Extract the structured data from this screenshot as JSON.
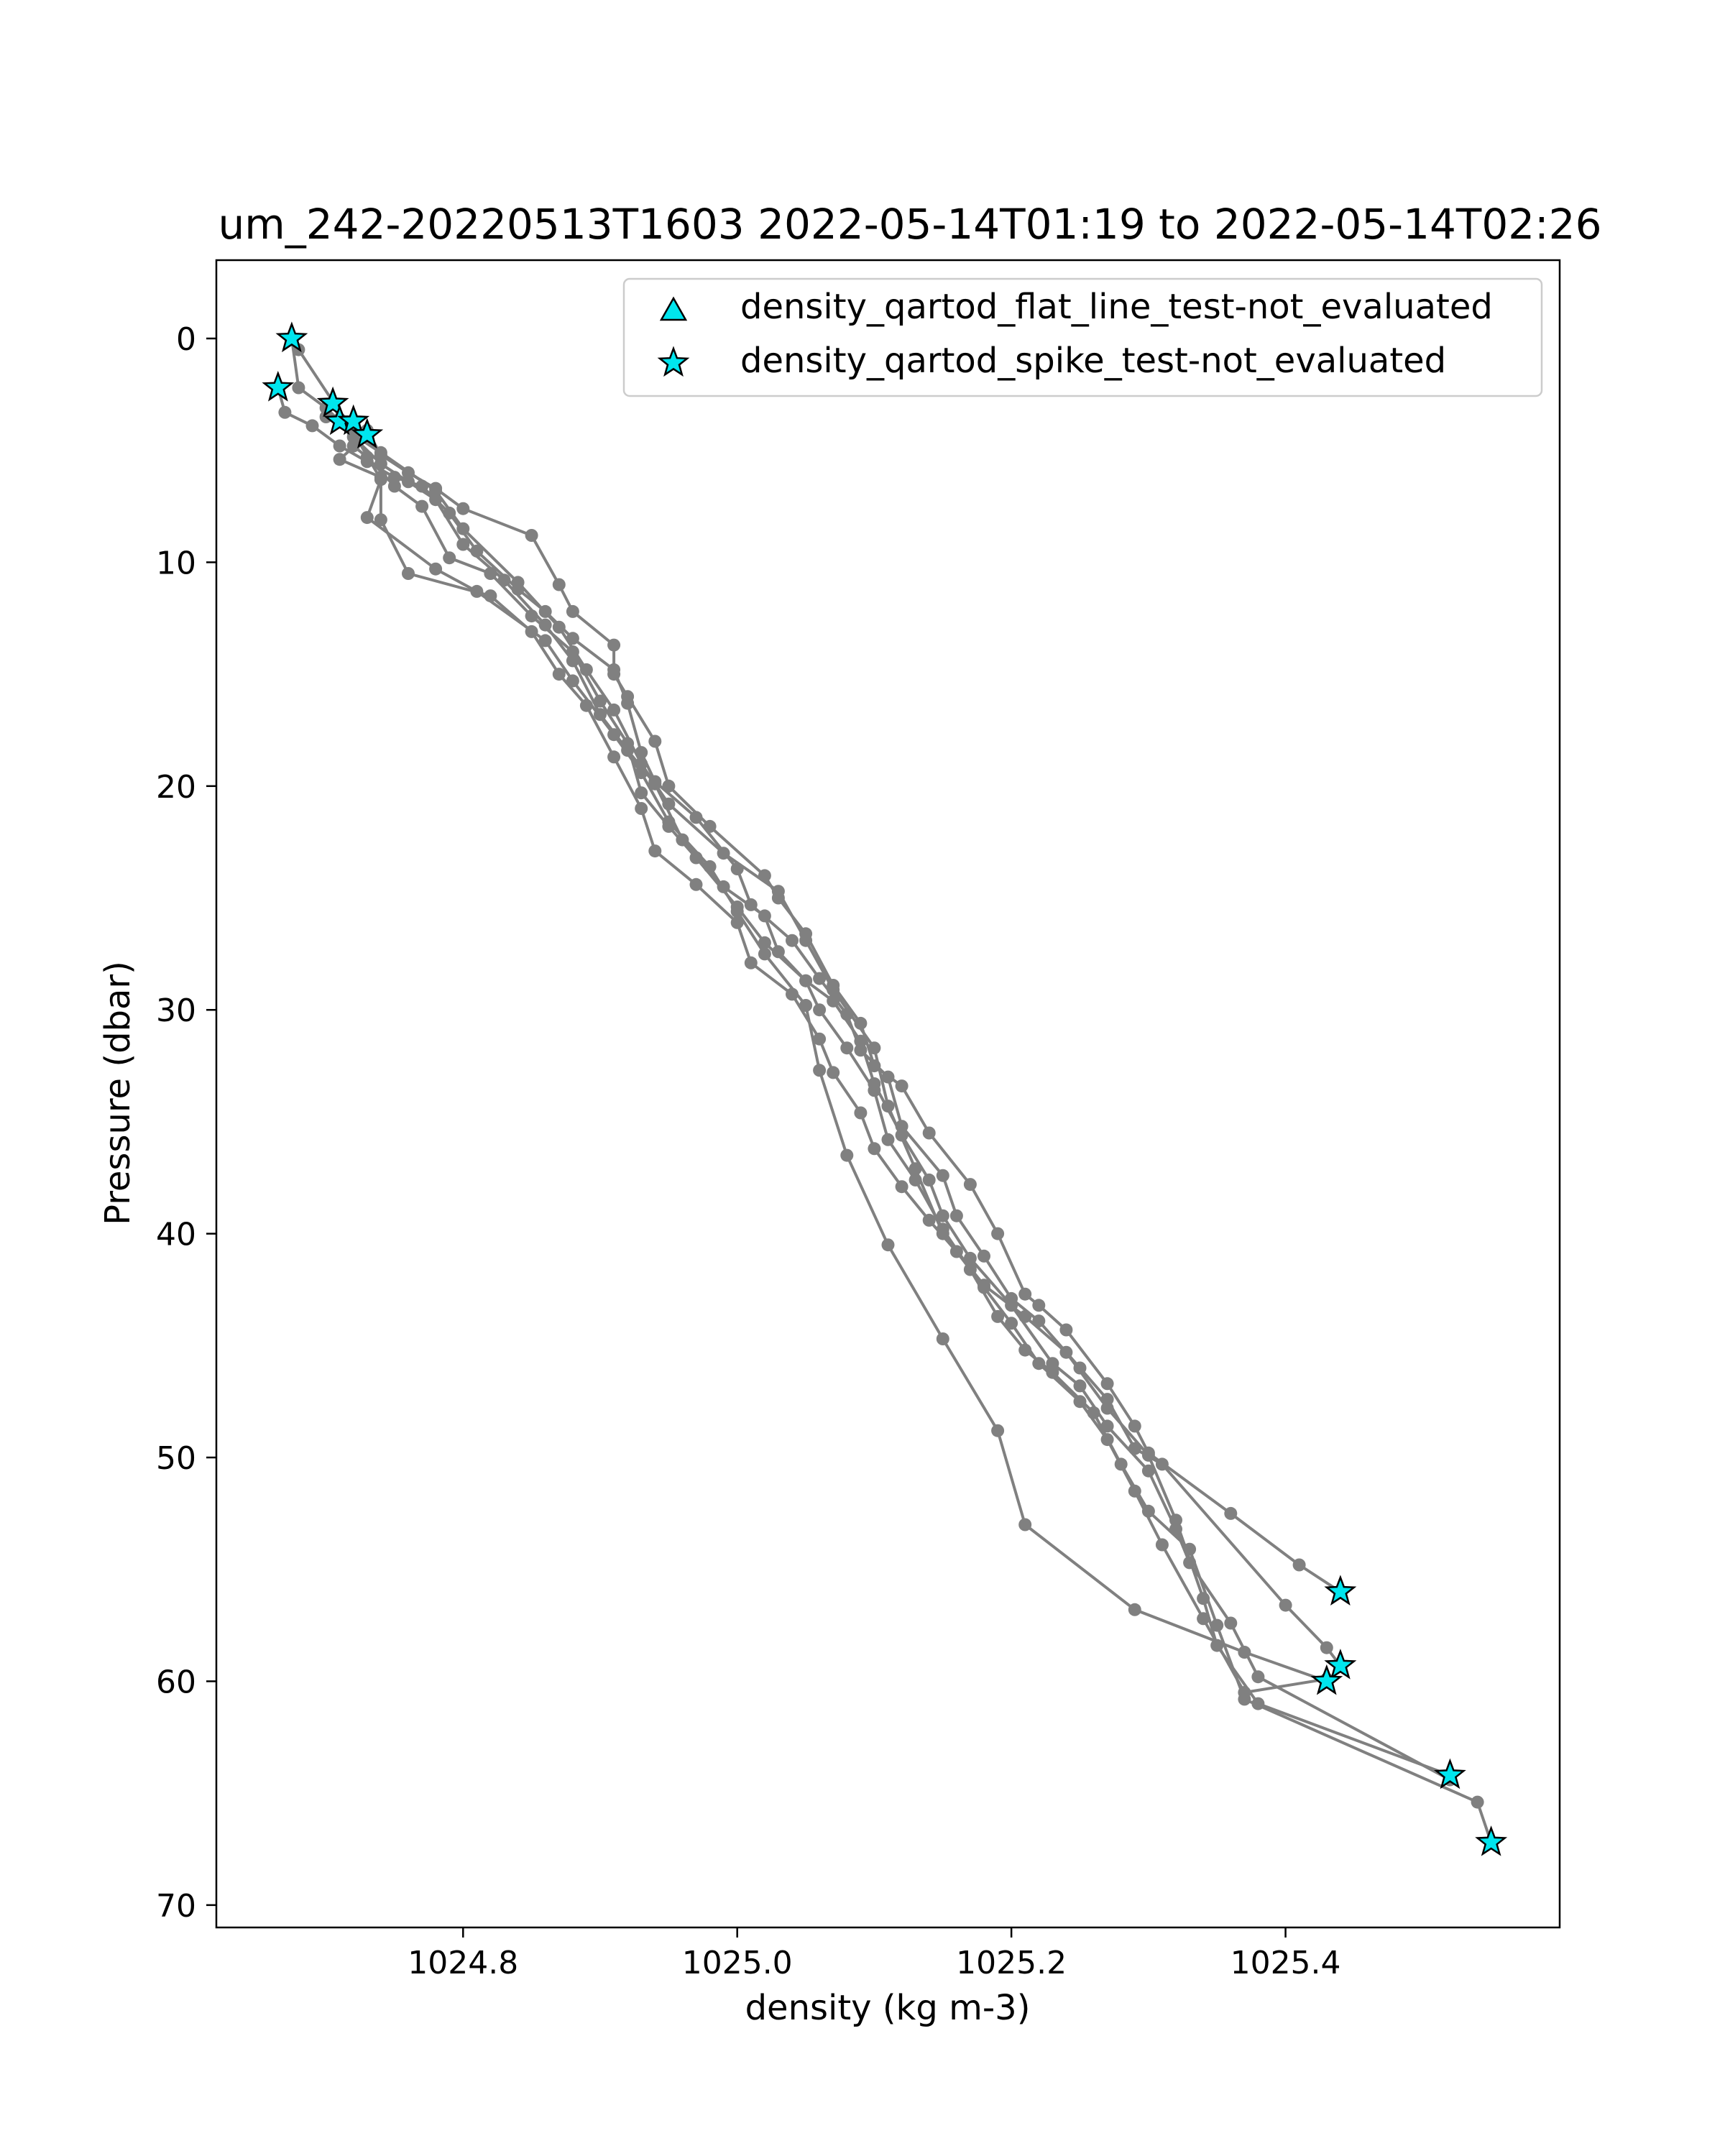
{
  "chart_data": {
    "type": "scatter",
    "title": "um_242-20220513T1603 2022-05-14T01:19 to 2022-05-14T02:26",
    "xlabel": "density (kg m-3)",
    "ylabel": "Pressure (dbar)",
    "xlim": [
      1024.62,
      1025.6
    ],
    "ylim": [
      71,
      -3.5
    ],
    "y_inverted": true,
    "grid": false,
    "legend_position": "top-right",
    "xticks": [
      1024.8,
      1025.0,
      1025.2,
      1025.4
    ],
    "xtick_labels": [
      "1024.8",
      "1025.0",
      "1025.2",
      "1025.4"
    ],
    "yticks": [
      0,
      10,
      20,
      30,
      40,
      50,
      60,
      70
    ],
    "ytick_labels": [
      "0",
      "10",
      "20",
      "30",
      "40",
      "50",
      "60",
      "70"
    ],
    "colors": {
      "profile": "#808080",
      "flag_fill": "#00e5ee",
      "flag_edge": "#000000",
      "axes": "#000000"
    },
    "legend": [
      {
        "label": "density_qartod_flat_line_test-not_evaluated",
        "marker": "triangle"
      },
      {
        "label": "density_qartod_spike_test-not_evaluated",
        "marker": "star"
      }
    ],
    "profiles": [
      {
        "points": [
          [
            1024.675,
            0.0
          ],
          [
            1024.68,
            2.2
          ],
          [
            1024.7,
            3.1
          ],
          [
            1024.71,
            3.7
          ],
          [
            1024.73,
            4.1
          ],
          [
            1024.74,
            5.2
          ],
          [
            1024.76,
            6.0
          ],
          [
            1024.78,
            6.7
          ],
          [
            1024.8,
            7.6
          ],
          [
            1024.85,
            8.8
          ],
          [
            1024.87,
            11.0
          ],
          [
            1024.88,
            12.2
          ],
          [
            1024.91,
            13.7
          ],
          [
            1024.91,
            15.0
          ],
          [
            1024.92,
            16.0
          ],
          [
            1024.94,
            18.0
          ],
          [
            1024.95,
            20.0
          ],
          [
            1024.98,
            21.8
          ],
          [
            1025.02,
            24.0
          ],
          [
            1025.03,
            25.0
          ],
          [
            1025.05,
            26.6
          ],
          [
            1025.07,
            28.9
          ],
          [
            1025.09,
            30.6
          ],
          [
            1025.1,
            32.5
          ],
          [
            1025.12,
            33.4
          ],
          [
            1025.14,
            35.5
          ],
          [
            1025.17,
            37.8
          ],
          [
            1025.19,
            40.0
          ],
          [
            1025.21,
            42.7
          ],
          [
            1025.22,
            43.2
          ],
          [
            1025.24,
            44.3
          ],
          [
            1025.27,
            46.7
          ],
          [
            1025.29,
            48.6
          ],
          [
            1025.3,
            49.8
          ],
          [
            1025.36,
            52.5
          ],
          [
            1025.41,
            54.8
          ],
          [
            1025.44,
            56.0
          ]
        ]
      },
      {
        "points": [
          [
            1024.665,
            2.2
          ],
          [
            1024.67,
            3.3
          ],
          [
            1024.69,
            3.9
          ],
          [
            1024.71,
            4.8
          ],
          [
            1024.73,
            5.5
          ],
          [
            1024.75,
            6.2
          ],
          [
            1024.77,
            6.6
          ],
          [
            1024.79,
            7.8
          ],
          [
            1024.81,
            9.5
          ],
          [
            1024.84,
            11.2
          ],
          [
            1024.86,
            12.2
          ],
          [
            1024.88,
            13.4
          ],
          [
            1024.91,
            14.8
          ],
          [
            1024.92,
            16.3
          ],
          [
            1024.93,
            18.5
          ],
          [
            1024.94,
            19.8
          ],
          [
            1024.97,
            21.4
          ],
          [
            1025.0,
            23.7
          ],
          [
            1025.01,
            25.3
          ],
          [
            1025.04,
            26.9
          ],
          [
            1025.06,
            28.6
          ],
          [
            1025.08,
            30.2
          ],
          [
            1025.09,
            31.8
          ],
          [
            1025.11,
            33.0
          ],
          [
            1025.12,
            35.2
          ],
          [
            1025.15,
            37.4
          ],
          [
            1025.16,
            39.2
          ],
          [
            1025.18,
            41.0
          ],
          [
            1025.2,
            42.9
          ],
          [
            1025.22,
            43.9
          ],
          [
            1025.25,
            46.0
          ],
          [
            1025.27,
            47.4
          ],
          [
            1025.29,
            49.6
          ],
          [
            1025.31,
            50.3
          ],
          [
            1025.4,
            56.6
          ],
          [
            1025.43,
            58.5
          ],
          [
            1025.44,
            59.3
          ]
        ]
      },
      {
        "points": [
          [
            1024.705,
            2.9
          ],
          [
            1024.71,
            3.6
          ],
          [
            1024.72,
            4.4
          ],
          [
            1024.74,
            5.6
          ],
          [
            1024.76,
            6.4
          ],
          [
            1024.78,
            7.2
          ],
          [
            1024.8,
            9.2
          ],
          [
            1024.83,
            10.8
          ],
          [
            1024.86,
            12.8
          ],
          [
            1024.88,
            14.4
          ],
          [
            1024.9,
            16.8
          ],
          [
            1024.92,
            18.4
          ],
          [
            1024.94,
            19.9
          ],
          [
            1024.96,
            22.4
          ],
          [
            1024.99,
            24.5
          ],
          [
            1025.02,
            25.8
          ],
          [
            1025.03,
            27.4
          ],
          [
            1025.05,
            28.7
          ],
          [
            1025.07,
            29.6
          ],
          [
            1025.09,
            31.4
          ],
          [
            1025.1,
            33.3
          ],
          [
            1025.12,
            35.6
          ],
          [
            1025.14,
            37.6
          ],
          [
            1025.15,
            39.2
          ],
          [
            1025.17,
            41.1
          ],
          [
            1025.2,
            43.2
          ],
          [
            1025.23,
            45.8
          ],
          [
            1025.25,
            46.8
          ],
          [
            1025.27,
            48.6
          ],
          [
            1025.3,
            50.6
          ],
          [
            1025.32,
            53.2
          ],
          [
            1025.33,
            54.7
          ],
          [
            1025.36,
            57.4
          ],
          [
            1025.38,
            59.8
          ],
          [
            1025.52,
            64.4
          ]
        ]
      },
      {
        "points": [
          [
            1024.72,
            3.7
          ],
          [
            1024.72,
            4.8
          ],
          [
            1024.73,
            5.3
          ],
          [
            1024.75,
            6.6
          ],
          [
            1024.77,
            7.5
          ],
          [
            1024.79,
            9.8
          ],
          [
            1024.82,
            10.5
          ],
          [
            1024.85,
            12.4
          ],
          [
            1024.88,
            14.0
          ],
          [
            1024.9,
            16.2
          ],
          [
            1024.92,
            18.1
          ],
          [
            1024.93,
            20.3
          ],
          [
            1024.95,
            21.8
          ],
          [
            1024.97,
            23.2
          ],
          [
            1025.0,
            25.4
          ],
          [
            1025.02,
            27.0
          ],
          [
            1025.05,
            28.7
          ],
          [
            1025.06,
            30.0
          ],
          [
            1025.08,
            31.7
          ],
          [
            1025.1,
            33.6
          ],
          [
            1025.11,
            35.8
          ],
          [
            1025.13,
            37.6
          ],
          [
            1025.15,
            39.8
          ],
          [
            1025.17,
            41.6
          ],
          [
            1025.19,
            43.7
          ],
          [
            1025.21,
            45.2
          ],
          [
            1025.23,
            46.2
          ],
          [
            1025.26,
            48.0
          ],
          [
            1025.28,
            50.3
          ],
          [
            1025.3,
            52.4
          ],
          [
            1025.33,
            54.1
          ],
          [
            1025.35,
            57.5
          ],
          [
            1025.37,
            60.8
          ],
          [
            1025.54,
            65.4
          ],
          [
            1025.55,
            67.2
          ]
        ]
      },
      {
        "points": [
          [
            1024.73,
            4.3
          ],
          [
            1024.71,
            5.4
          ],
          [
            1024.74,
            6.2
          ],
          [
            1024.74,
            8.1
          ],
          [
            1024.76,
            10.5
          ],
          [
            1024.82,
            11.5
          ],
          [
            1024.85,
            13.1
          ],
          [
            1024.87,
            15.0
          ],
          [
            1024.89,
            16.4
          ],
          [
            1024.91,
            18.7
          ],
          [
            1024.93,
            21.0
          ],
          [
            1024.94,
            22.9
          ],
          [
            1024.97,
            24.4
          ],
          [
            1025.0,
            26.1
          ],
          [
            1025.01,
            27.9
          ],
          [
            1025.04,
            29.3
          ],
          [
            1025.06,
            31.3
          ],
          [
            1025.07,
            32.8
          ],
          [
            1025.09,
            34.6
          ],
          [
            1025.1,
            36.2
          ],
          [
            1025.12,
            37.9
          ],
          [
            1025.14,
            39.4
          ],
          [
            1025.16,
            40.8
          ],
          [
            1025.18,
            42.4
          ],
          [
            1025.2,
            44.0
          ],
          [
            1025.22,
            45.8
          ],
          [
            1025.25,
            47.5
          ],
          [
            1025.27,
            49.2
          ],
          [
            1025.29,
            51.5
          ],
          [
            1025.31,
            53.9
          ],
          [
            1025.34,
            57.2
          ],
          [
            1025.37,
            60.5
          ],
          [
            1025.43,
            59.9
          ]
        ]
      },
      {
        "points": [
          [
            1024.68,
            0.5
          ],
          [
            1024.72,
            4.2
          ],
          [
            1024.74,
            6.3
          ],
          [
            1024.73,
            8.0
          ],
          [
            1024.78,
            10.3
          ],
          [
            1024.81,
            11.3
          ],
          [
            1024.86,
            13.5
          ],
          [
            1024.88,
            15.3
          ],
          [
            1024.91,
            17.7
          ],
          [
            1024.93,
            19.4
          ],
          [
            1024.95,
            21.6
          ],
          [
            1024.98,
            23.6
          ],
          [
            1025.0,
            25.6
          ],
          [
            1025.02,
            27.5
          ],
          [
            1025.05,
            29.8
          ],
          [
            1025.06,
            32.7
          ],
          [
            1025.08,
            36.5
          ],
          [
            1025.11,
            40.5
          ],
          [
            1025.15,
            44.7
          ],
          [
            1025.19,
            48.8
          ],
          [
            1025.21,
            53.0
          ],
          [
            1025.29,
            56.8
          ],
          [
            1025.37,
            58.7
          ],
          [
            1025.43,
            60.0
          ]
        ]
      },
      {
        "points": [
          [
            1024.7,
            3.5
          ],
          [
            1024.74,
            5.1
          ],
          [
            1024.78,
            6.8
          ],
          [
            1024.8,
            8.5
          ],
          [
            1024.84,
            10.9
          ],
          [
            1024.87,
            12.9
          ],
          [
            1024.89,
            14.8
          ],
          [
            1024.91,
            16.6
          ],
          [
            1024.93,
            19.0
          ],
          [
            1024.95,
            20.8
          ],
          [
            1024.99,
            23.0
          ],
          [
            1025.03,
            24.7
          ],
          [
            1025.05,
            26.9
          ],
          [
            1025.07,
            29.1
          ],
          [
            1025.1,
            31.7
          ],
          [
            1025.11,
            34.3
          ],
          [
            1025.13,
            37.1
          ],
          [
            1025.15,
            40.0
          ],
          [
            1025.18,
            42.3
          ],
          [
            1025.21,
            43.7
          ],
          [
            1025.24,
            45.3
          ],
          [
            1025.27,
            47.8
          ],
          [
            1025.3,
            49.9
          ],
          [
            1025.32,
            52.8
          ],
          [
            1025.34,
            56.3
          ],
          [
            1025.35,
            58.4
          ],
          [
            1025.38,
            61.0
          ],
          [
            1025.52,
            64.2
          ]
        ]
      }
    ],
    "spike_flags": [
      [
        1024.675,
        0.0
      ],
      [
        1024.665,
        2.2
      ],
      [
        1024.705,
        2.9
      ],
      [
        1024.71,
        3.7
      ],
      [
        1024.72,
        3.7
      ],
      [
        1024.73,
        4.3
      ],
      [
        1025.44,
        56.0
      ],
      [
        1025.44,
        59.3
      ],
      [
        1025.43,
        60.0
      ],
      [
        1025.52,
        64.2
      ],
      [
        1025.55,
        67.2
      ]
    ],
    "flat_line_flags": []
  }
}
